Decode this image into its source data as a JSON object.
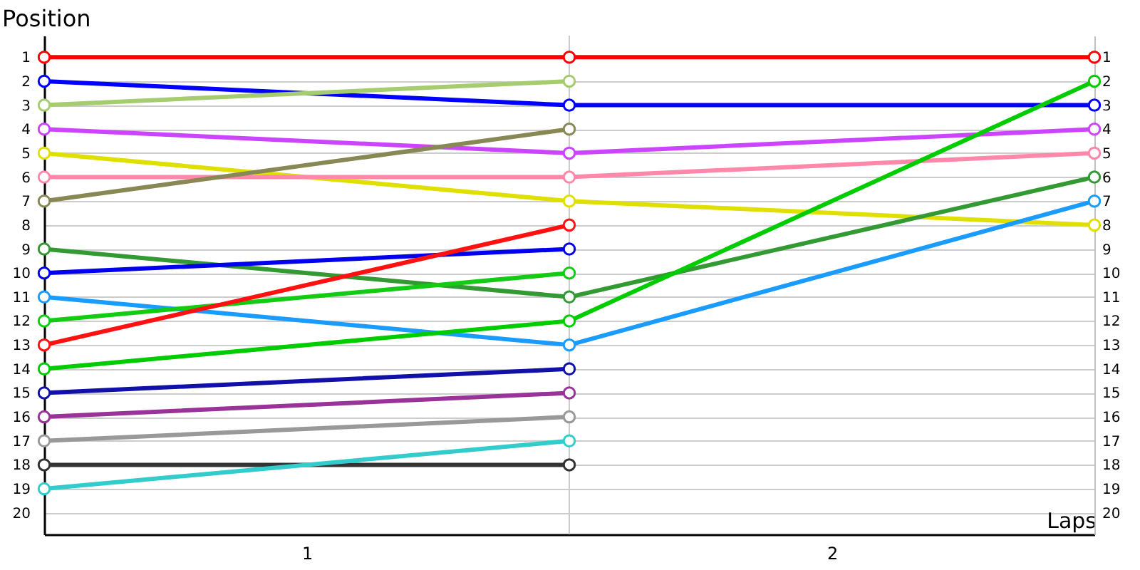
{
  "chart_data": {
    "type": "line",
    "xlabel": "Laps",
    "ylabel": "Position",
    "x": [
      0,
      1,
      2
    ],
    "xlim": [
      0,
      2
    ],
    "xticks": [
      {
        "value": 0.5,
        "label": "1"
      },
      {
        "value": 1.5,
        "label": "2"
      }
    ],
    "ylim": [
      20.9,
      0.1
    ],
    "yticks": [
      1,
      2,
      3,
      4,
      5,
      6,
      7,
      8,
      9,
      10,
      11,
      12,
      13,
      14,
      15,
      16,
      17,
      18,
      19,
      20
    ],
    "y2lim": [
      20.9,
      0.1
    ],
    "y2ticks": [
      1,
      2,
      3,
      4,
      5,
      6,
      7,
      8,
      9,
      10,
      11,
      12,
      13,
      14,
      15,
      16,
      17,
      18,
      19,
      20
    ],
    "grid": "y",
    "marker": "circle",
    "line_style": "solid",
    "legend": false,
    "ref_lines": [
      {
        "axis": "x",
        "value": 1,
        "color": "#cccccc"
      }
    ],
    "series": [
      {
        "color": "#ff0000",
        "values": [
          1,
          1,
          1
        ]
      },
      {
        "color": "#0000ff",
        "values": [
          2,
          3,
          3
        ]
      },
      {
        "color": "#a6cc70",
        "values": [
          3,
          2,
          null
        ]
      },
      {
        "color": "#cc44ff",
        "values": [
          4,
          5,
          4
        ]
      },
      {
        "color": "#e0e000",
        "values": [
          5,
          7,
          8
        ]
      },
      {
        "color": "#ff88aa",
        "values": [
          6,
          6,
          5
        ]
      },
      {
        "color": "#888855",
        "values": [
          7,
          4,
          null
        ]
      },
      {
        "color": "#339933",
        "values": [
          9,
          11,
          6
        ]
      },
      {
        "color": "#0000ee",
        "values": [
          10,
          9,
          null
        ]
      },
      {
        "color": "#1a9cff",
        "values": [
          11,
          13,
          7
        ]
      },
      {
        "color": "#11cc11",
        "values": [
          12,
          10,
          null
        ]
      },
      {
        "color": "#ff1111",
        "values": [
          13,
          8,
          null
        ]
      },
      {
        "color": "#00cc00",
        "values": [
          14,
          12,
          2
        ]
      },
      {
        "color": "#1111aa",
        "values": [
          15,
          14,
          null
        ]
      },
      {
        "color": "#993399",
        "values": [
          16,
          15,
          null
        ]
      },
      {
        "color": "#999999",
        "values": [
          17,
          16,
          null
        ]
      },
      {
        "color": "#333333",
        "values": [
          18,
          18,
          null
        ]
      },
      {
        "color": "#33cccc",
        "values": [
          19,
          17,
          null
        ]
      }
    ]
  }
}
